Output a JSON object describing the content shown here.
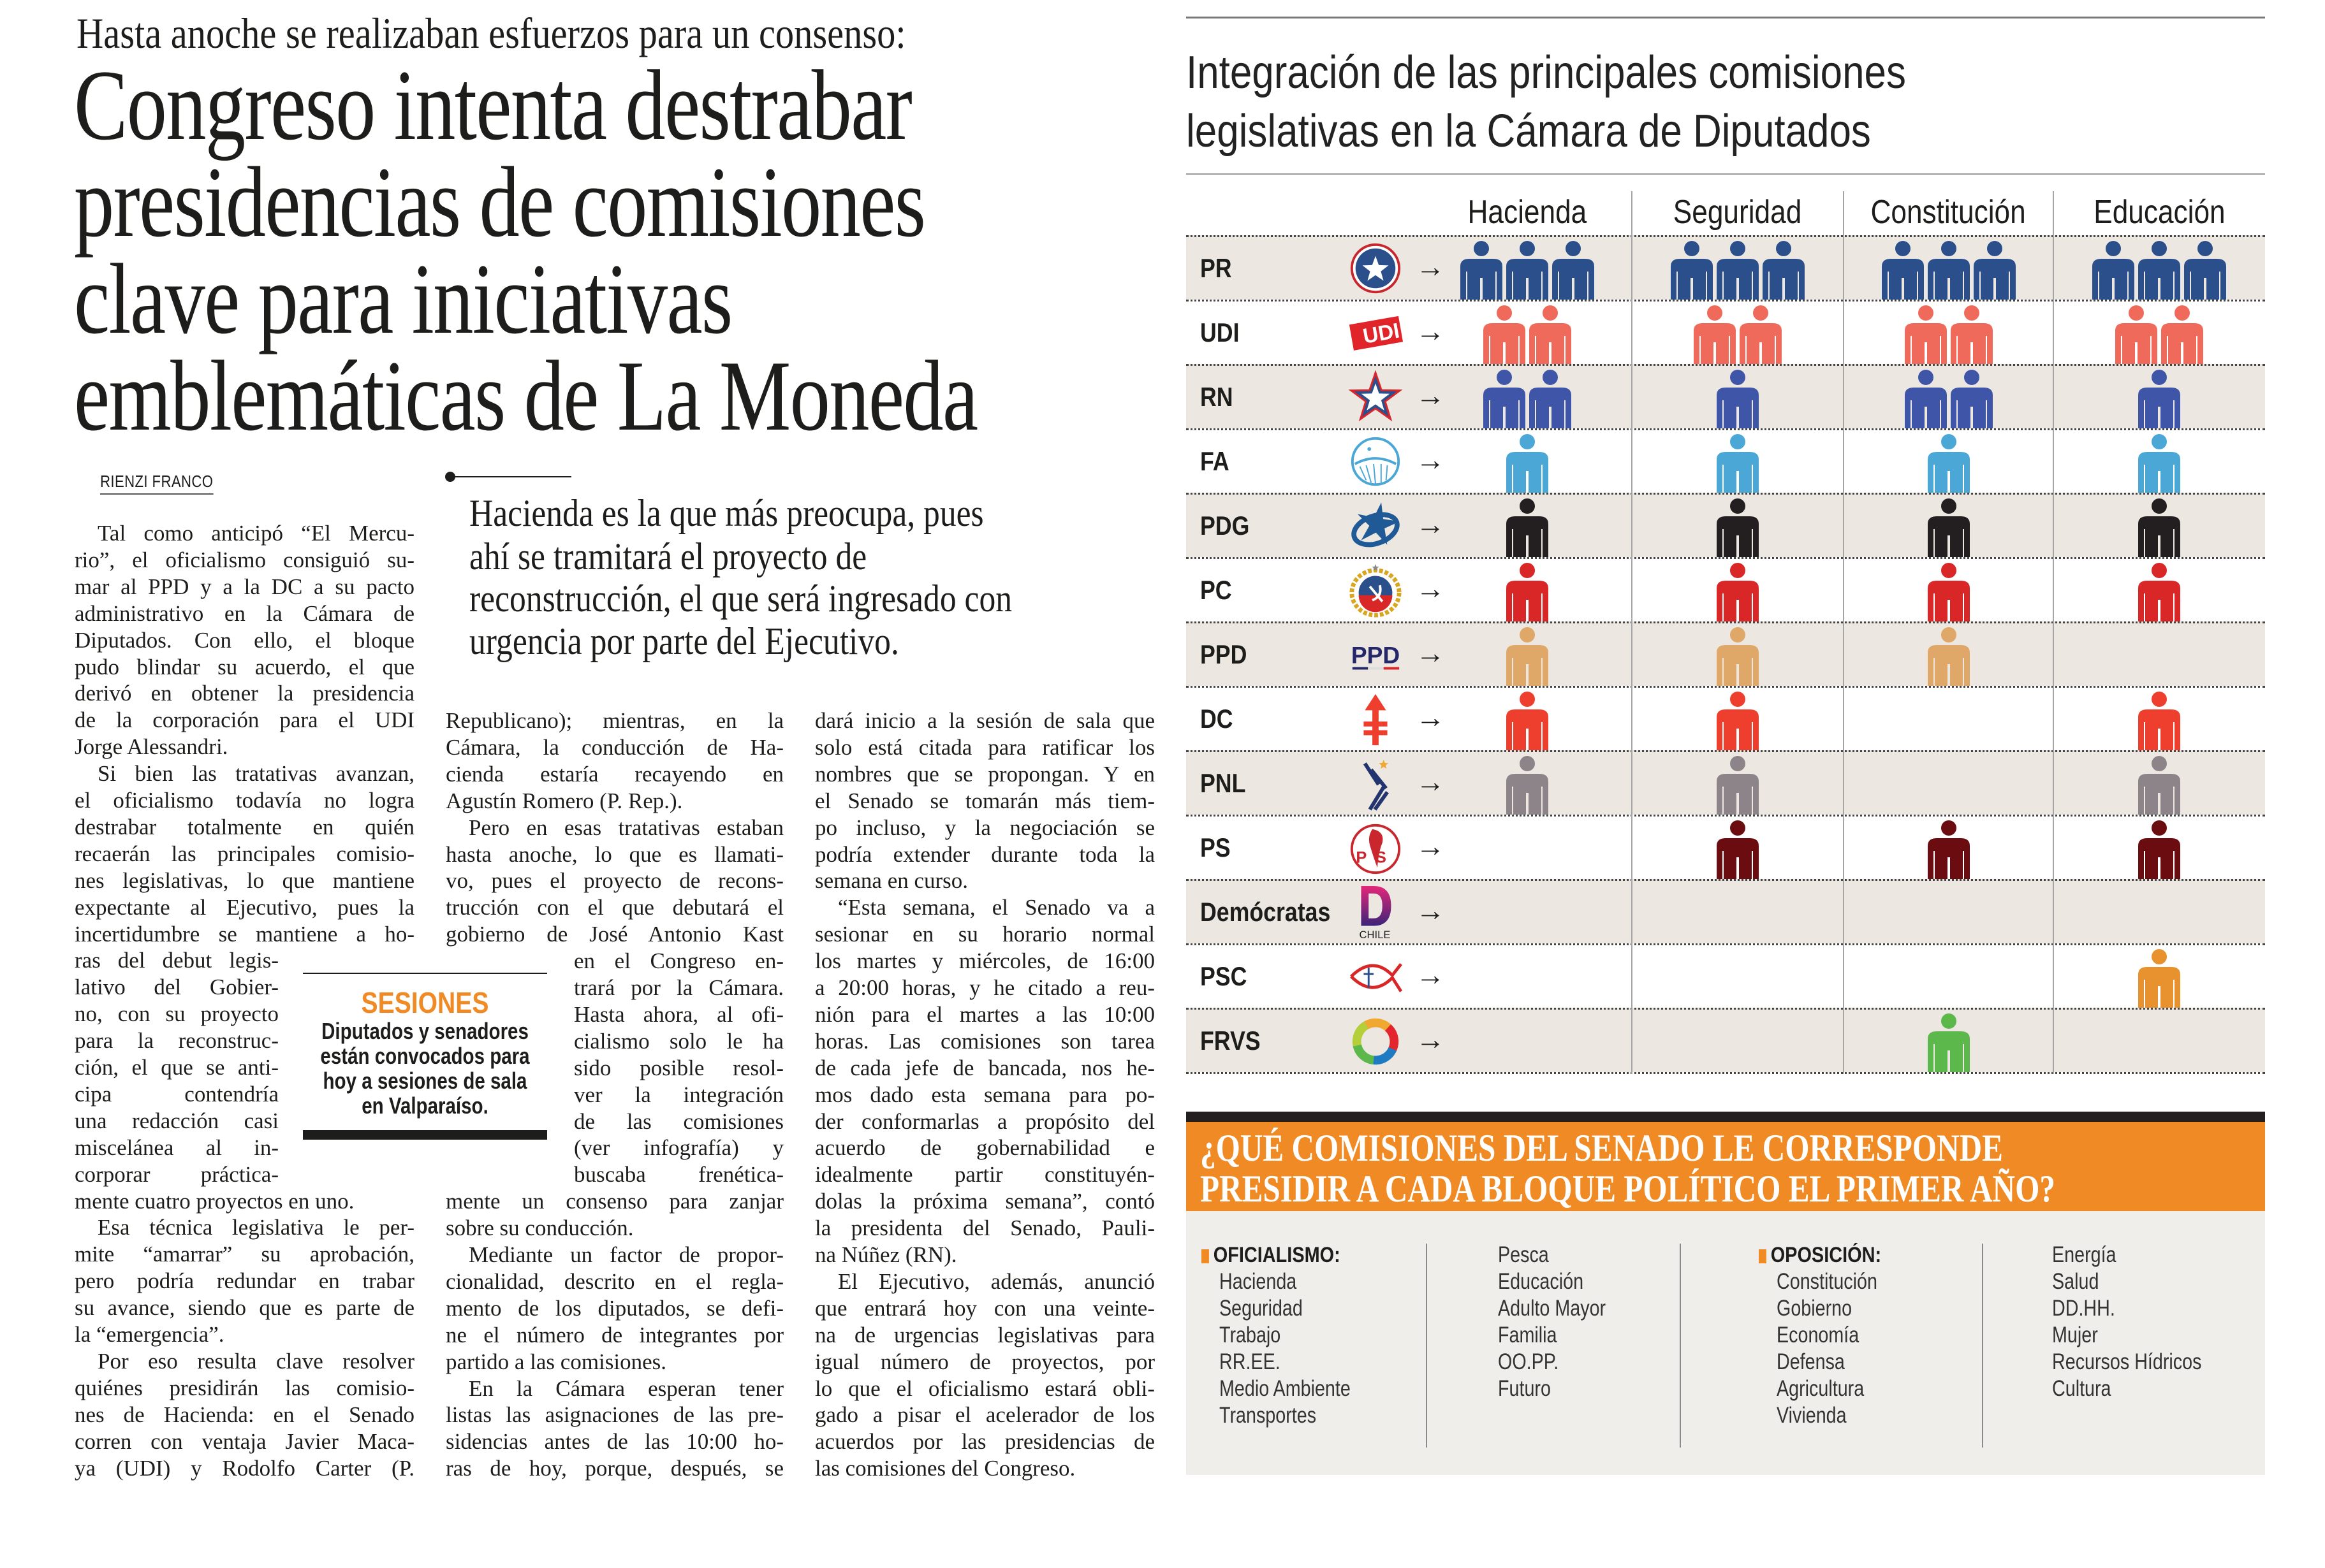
{
  "kicker": "Hasta anoche se realizaban esfuerzos para un consenso:",
  "headline": [
    "Congreso intenta destrabar",
    "presidencias de comisiones",
    "clave para iniciativas",
    "emblemáticas de La Moneda"
  ],
  "byline": "RIENZI FRANCO",
  "pull_quote": [
    "Hacienda es la que más preocupa, pues",
    "ahí se tramitará el proyecto de",
    "reconstrucción, el que será ingresado con",
    "urgencia por parte del Ejecutivo."
  ],
  "sidebar": {
    "title": "SESIONES",
    "lines": [
      "Diputados y senadores",
      "están convocados para",
      "hoy a sesiones de sala",
      "en Valparaíso."
    ]
  },
  "article": {
    "columns": [
      {
        "paragraphs": [
          {
            "lines": [
              "Tal como anticipó “El Mercu-",
              "rio”, el oficialismo consiguió su-",
              "mar al PPD y a la DC a su pacto",
              "administrativo en la Cámara de",
              "Diputados. Con ello, el bloque",
              "pudo blindar su acuerdo, el que",
              "derivó en obtener la presidencia",
              "de la corporación para el UDI",
              "Jorge Alessandri."
            ]
          },
          {
            "lines": [
              "Si bien las tratativas avanzan,",
              "el oficialismo todavía no logra",
              "destrabar totalmente en quién",
              "recaerán las principales comisio-",
              "nes legislativas, lo que mantiene",
              "expectante al Ejecutivo, pues la",
              "incertidumbre se mantiene a ho-",
              "ras del debut legis-",
              "lativo del Gobier-",
              "no, con su proyecto",
              "para la reconstruc-",
              "ción, el que se anti-",
              "cipa contendría",
              "una redacción casi",
              "miscelánea al in-",
              "corporar práctica-",
              "mente cuatro proyectos en uno."
            ]
          },
          {
            "lines": [
              "Esa técnica legislativa le per-",
              "mite “amarrar” su aprobación,",
              "pero podría redundar en trabar",
              "su avance, siendo que es parte de",
              "la “emergencia”."
            ]
          },
          {
            "lines": [
              "Por eso resulta clave resolver",
              "quiénes presidirán las comisio-",
              "nes de Hacienda: en el Senado",
              "corren con ventaja Javier Maca-",
              "ya (UDI) y Rodolfo Carter (P."
            ]
          }
        ]
      },
      {
        "paragraphs": [
          {
            "lines": [
              "Republicano); mientras, en la",
              "Cámara, la conducción de Ha-",
              "cienda estaría recayendo en",
              "Agustín Romero (P. Rep.)."
            ]
          },
          {
            "lines": [
              "Pero en esas tratativas estaban",
              "hasta anoche, lo que es llamati-",
              "vo, pues el proyecto de recons-",
              "trucción con el que debutará el",
              "gobierno de José Antonio Kast",
              "en el Congreso en-",
              "trará por la Cámara.",
              "Hasta ahora, al ofi-",
              "cialismo solo le ha",
              "sido posible resol-",
              "ver la integración",
              "de las comisiones",
              "(ver infografía) y",
              "buscaba frenética-",
              "mente un consenso para zanjar",
              "sobre su conducción."
            ]
          },
          {
            "lines": [
              "Mediante un factor de propor-",
              "cionalidad, descrito en el regla-",
              "mento de los diputados, se defi-",
              "ne el número de integrantes por",
              "partido a las comisiones."
            ]
          },
          {
            "lines": [
              "En la Cámara esperan tener",
              "listas las asignaciones de las pre-",
              "sidencias antes de las 10:00 ho-",
              "ras de hoy, porque, después, se"
            ]
          }
        ]
      },
      {
        "paragraphs": [
          {
            "lines": [
              "dará inicio a la sesión de sala que",
              "solo está citada para ratificar los",
              "nombres que se propongan. Y en",
              "el Senado se tomarán más tiem-",
              "po incluso, y la negociación se",
              "podría extender durante toda la",
              "semana en curso."
            ]
          },
          {
            "lines": [
              "“Esta semana, el Senado va a",
              "sesionar en su horario normal",
              "los martes y miércoles, de 16:00",
              "a 20:00 horas, y he citado a reu-",
              "nión para el martes a las 10:00",
              "horas. Las comisiones son tarea",
              "de cada jefe de bancada, nos he-",
              "mos dado esta semana para po-",
              "der conformarlas a propósito del",
              "acuerdo de gobernabilidad e",
              "idealmente partir constituyén-",
              "dolas la próxima semana”, contó",
              "la presidenta del Senado, Pauli-",
              "na Núñez (RN)."
            ]
          },
          {
            "lines": [
              "El Ejecutivo, además, anunció",
              "que entrará hoy con una veinte-",
              "na de urgencias legislativas para",
              "igual número de proyectos, por",
              "lo que el oficialismo estará obli-",
              "gado a pisar el acelerador de los",
              "acuerdos por las presidencias de",
              "las comisiones del Congreso."
            ]
          }
        ]
      }
    ]
  },
  "infographic": {
    "title": [
      "Integración de las principales comisiones",
      "legislativas en la Cámara de Diputados"
    ],
    "committees": [
      "Hacienda",
      "Seguridad",
      "Constitución",
      "Educación"
    ],
    "arrow": "→",
    "rows": [
      {
        "party": "PR",
        "logo": "pr-logo",
        "color": "#2a4f8a",
        "counts": [
          3,
          3,
          3,
          3
        ]
      },
      {
        "party": "UDI",
        "logo": "udi-logo",
        "logo_text": "UDI",
        "color": "#ef6a5a",
        "counts": [
          2,
          2,
          2,
          2
        ]
      },
      {
        "party": "RN",
        "logo": "rn-logo",
        "color": "#3f56a8",
        "counts": [
          2,
          1,
          2,
          1
        ]
      },
      {
        "party": "FA",
        "logo": "fa-logo",
        "color": "#4aa7d6",
        "counts": [
          1,
          1,
          1,
          1
        ]
      },
      {
        "party": "PDG",
        "logo": "pdg-logo",
        "color": "#231f20",
        "counts": [
          1,
          1,
          1,
          1
        ]
      },
      {
        "party": "PC",
        "logo": "pc-logo",
        "color": "#d92627",
        "counts": [
          1,
          1,
          1,
          1
        ]
      },
      {
        "party": "PPD",
        "logo": "ppd-logo",
        "logo_text": "PPD",
        "color": "#e0a868",
        "counts": [
          1,
          1,
          1,
          0
        ]
      },
      {
        "party": "DC",
        "logo": "dc-logo",
        "color": "#ee3e2d",
        "counts": [
          1,
          1,
          0,
          1
        ]
      },
      {
        "party": "PNL",
        "logo": "pnl-logo",
        "color": "#8c8489",
        "counts": [
          1,
          1,
          0,
          1
        ]
      },
      {
        "party": "PS",
        "logo": "ps-logo",
        "logo_text": "PS",
        "color": "#6b0d10",
        "counts": [
          0,
          1,
          1,
          1
        ]
      },
      {
        "party": "Demócratas",
        "logo": "democratas-logo",
        "logo_text": "CHILE",
        "color": "#6a2a7c",
        "counts": [
          0,
          0,
          0,
          0
        ]
      },
      {
        "party": "PSC",
        "logo": "psc-logo",
        "color": "#e8922f",
        "counts": [
          0,
          0,
          0,
          1
        ]
      },
      {
        "party": "FRVS",
        "logo": "frvs-logo",
        "color": "#5cb84a",
        "counts": [
          0,
          0,
          1,
          0
        ]
      }
    ]
  },
  "senate_box": {
    "title": [
      "¿QUÉ COMISIONES DEL SENADO LE CORRESPONDE",
      "PRESIDIR A CADA BLOQUE POLÍTICO EL PRIMER AÑO?"
    ],
    "accent_color": "#f08a24",
    "groups": [
      {
        "label": "OFICIALISMO:",
        "columns": [
          [
            "Hacienda",
            "Seguridad",
            "Trabajo",
            "RR.EE.",
            "Medio Ambiente",
            "Transportes"
          ],
          [
            "Pesca",
            "Educación",
            "Adulto Mayor",
            "Familia",
            "OO.PP.",
            "Futuro"
          ]
        ]
      },
      {
        "label": "OPOSICIÓN:",
        "columns": [
          [
            "Constitución",
            "Gobierno",
            "Economía",
            "Defensa",
            "Agricultura",
            "Vivienda"
          ],
          [
            "Energía",
            "Salud",
            "DD.HH.",
            "Mujer",
            "Recursos Hídricos",
            "Cultura"
          ]
        ]
      }
    ]
  }
}
